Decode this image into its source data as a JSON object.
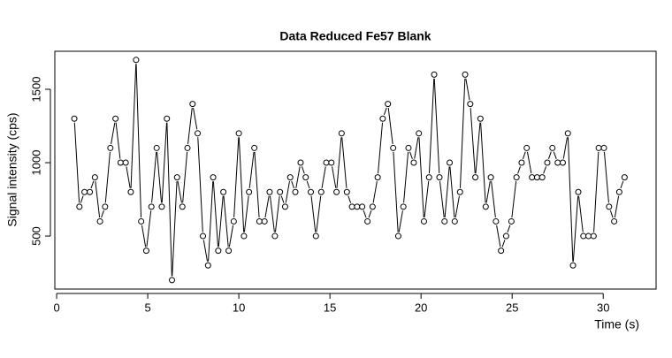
{
  "chart_data": {
    "type": "scatter",
    "title": "Data Reduced Fe57 Blank",
    "x_label": "Time (s)",
    "y_label": "Signal intensity (cps)",
    "x": [
      0.97,
      1.25,
      1.53,
      1.82,
      2.1,
      2.38,
      2.66,
      2.95,
      3.23,
      3.51,
      3.79,
      4.07,
      4.36,
      4.64,
      4.92,
      5.2,
      5.49,
      5.77,
      6.05,
      6.33,
      6.61,
      6.9,
      7.18,
      7.46,
      7.74,
      8.03,
      8.31,
      8.59,
      8.87,
      9.15,
      9.44,
      9.72,
      10.0,
      10.28,
      10.56,
      10.85,
      11.13,
      11.41,
      11.69,
      11.98,
      12.26,
      12.54,
      12.82,
      13.1,
      13.39,
      13.67,
      13.95,
      14.23,
      14.52,
      14.8,
      15.08,
      15.36,
      15.64,
      15.93,
      16.21,
      16.49,
      16.77,
      17.06,
      17.34,
      17.62,
      17.9,
      18.18,
      18.47,
      18.75,
      19.03,
      19.31,
      19.6,
      19.88,
      20.16,
      20.44,
      20.72,
      21.01,
      21.29,
      21.57,
      21.85,
      22.14,
      22.42,
      22.7,
      22.98,
      23.26,
      23.55,
      23.83,
      24.11,
      24.39,
      24.67,
      24.96,
      25.24,
      25.52,
      25.8,
      26.09,
      26.37,
      26.65,
      26.93,
      27.21,
      27.5,
      27.78,
      28.06,
      28.34,
      28.63,
      28.91,
      29.19,
      29.47,
      29.75,
      30.04,
      30.32,
      30.6,
      30.88,
      31.17
    ],
    "values": [
      1300,
      700,
      800,
      800,
      900,
      600,
      700,
      1100,
      1300,
      1000,
      1000,
      800,
      1700,
      600,
      400,
      700,
      1100,
      700,
      1300,
      200,
      900,
      700,
      1100,
      1400,
      1200,
      500,
      300,
      900,
      400,
      800,
      400,
      600,
      1200,
      500,
      800,
      1100,
      600,
      600,
      800,
      500,
      800,
      700,
      900,
      800,
      1000,
      900,
      800,
      500,
      800,
      1000,
      1000,
      800,
      1200,
      800,
      700,
      700,
      700,
      600,
      700,
      900,
      1300,
      1400,
      1100,
      500,
      700,
      1100,
      1000,
      1200,
      600,
      900,
      1600,
      900,
      600,
      1000,
      600,
      800,
      1600,
      1400,
      900,
      1300,
      700,
      900,
      600,
      400,
      500,
      600,
      900,
      1000,
      1100,
      900,
      900,
      900,
      1000,
      1100,
      1000,
      1000,
      1200,
      300,
      800,
      500,
      500,
      500,
      1100,
      1100,
      700,
      600,
      800,
      900
    ],
    "color": "#000000",
    "xlim": [
      -0.1,
      32.9
    ],
    "ylim": [
      139,
      1759
    ],
    "xticks": [
      0,
      5,
      10,
      15,
      20,
      25,
      30
    ],
    "yticks": [
      500,
      1000,
      1500
    ]
  }
}
